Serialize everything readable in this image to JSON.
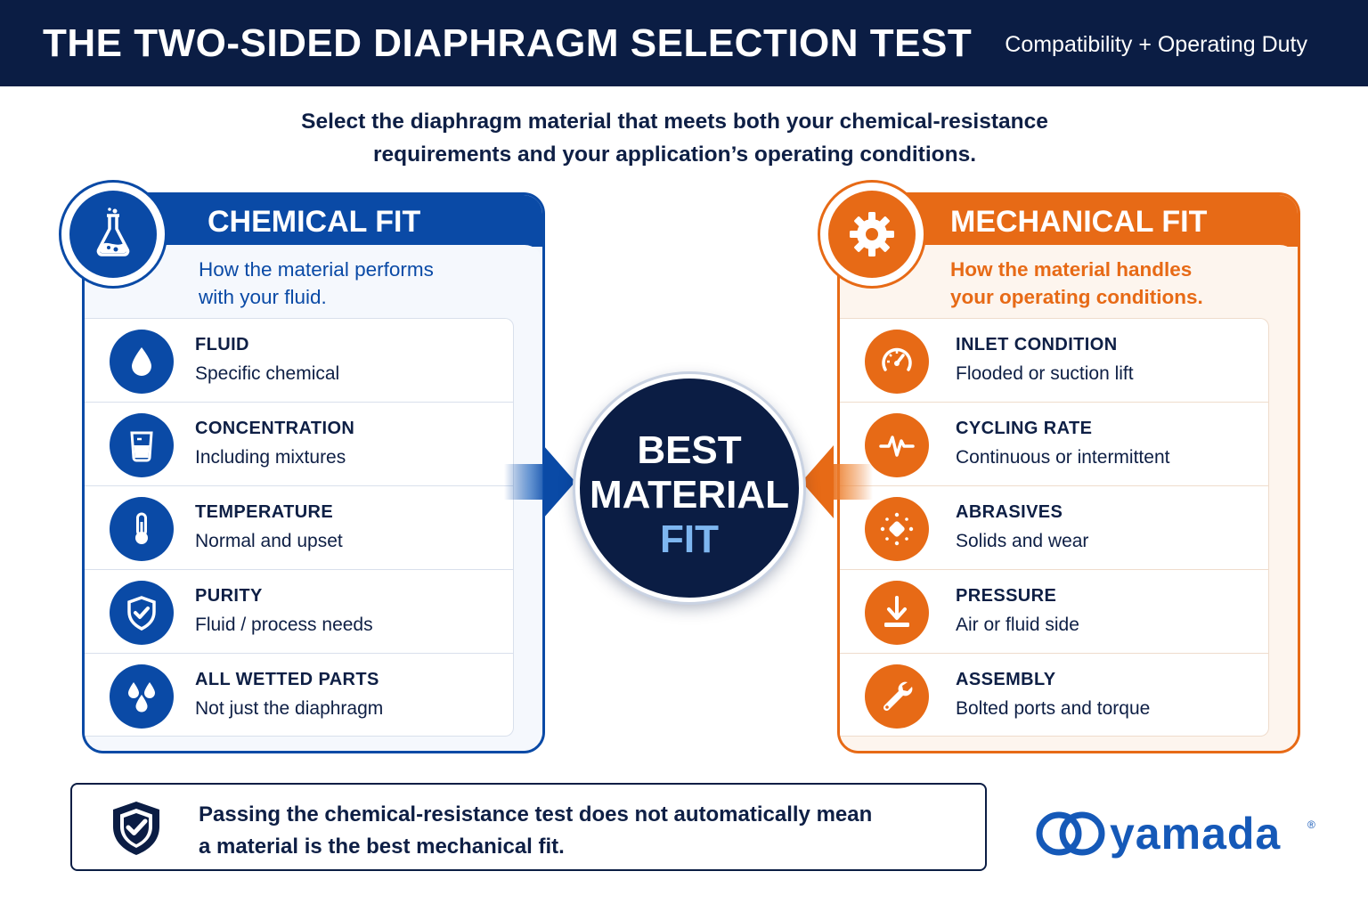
{
  "header": {
    "title": "THE TWO-SIDED DIAPHRAGM SELECTION TEST",
    "subtitle": "Compatibility + Operating Duty"
  },
  "intro": {
    "line1": "Select the diaphragm material that meets both your chemical-resistance",
    "line2": "requirements and your application’s operating conditions."
  },
  "chemical": {
    "title": "CHEMICAL FIT",
    "desc_line1": "How the material performs",
    "desc_line2": "with your fluid.",
    "icon": "flask-icon",
    "items": [
      {
        "title": "FLUID",
        "text": "Specific chemical",
        "icon": "droplet-icon"
      },
      {
        "title": "CONCENTRATION",
        "text": "Including mixtures",
        "icon": "beaker-icon"
      },
      {
        "title": "TEMPERATURE",
        "text": "Normal and upset",
        "icon": "thermometer-icon"
      },
      {
        "title": "PURITY",
        "text": "Fluid / process needs",
        "icon": "shield-check-icon"
      },
      {
        "title": "ALL WETTED PARTS",
        "text": "Not just the diaphragm",
        "icon": "droplets-icon"
      }
    ]
  },
  "mechanical": {
    "title": "MECHANICAL FIT",
    "desc_line1": "How the material handles",
    "desc_line2": "your operating conditions.",
    "icon": "gear-icon",
    "items": [
      {
        "title": "INLET CONDITION",
        "text": "Flooded or suction lift",
        "icon": "gauge-icon"
      },
      {
        "title": "CYCLING RATE",
        "text": "Continuous or intermittent",
        "icon": "pulse-icon"
      },
      {
        "title": "ABRASIVES",
        "text": "Solids and wear",
        "icon": "particles-icon"
      },
      {
        "title": "PRESSURE",
        "text": "Air or fluid side",
        "icon": "pressure-down-icon"
      },
      {
        "title": "ASSEMBLY",
        "text": "Bolted ports and torque",
        "icon": "wrench-icon"
      }
    ]
  },
  "center": {
    "line1": "BEST",
    "line2": "MATERIAL",
    "line3": "FIT"
  },
  "note": {
    "line1": "Passing the chemical-resistance test does not automatically mean",
    "line2": "a material is the best mechanical fit.",
    "icon": "shield-check-icon"
  },
  "logo": {
    "word": "yamada",
    "reg": "®"
  },
  "colors": {
    "navy": "#0b1d44",
    "blue": "#0a4aa6",
    "orange": "#e76a16",
    "light_blue": "#7eb6f0"
  }
}
